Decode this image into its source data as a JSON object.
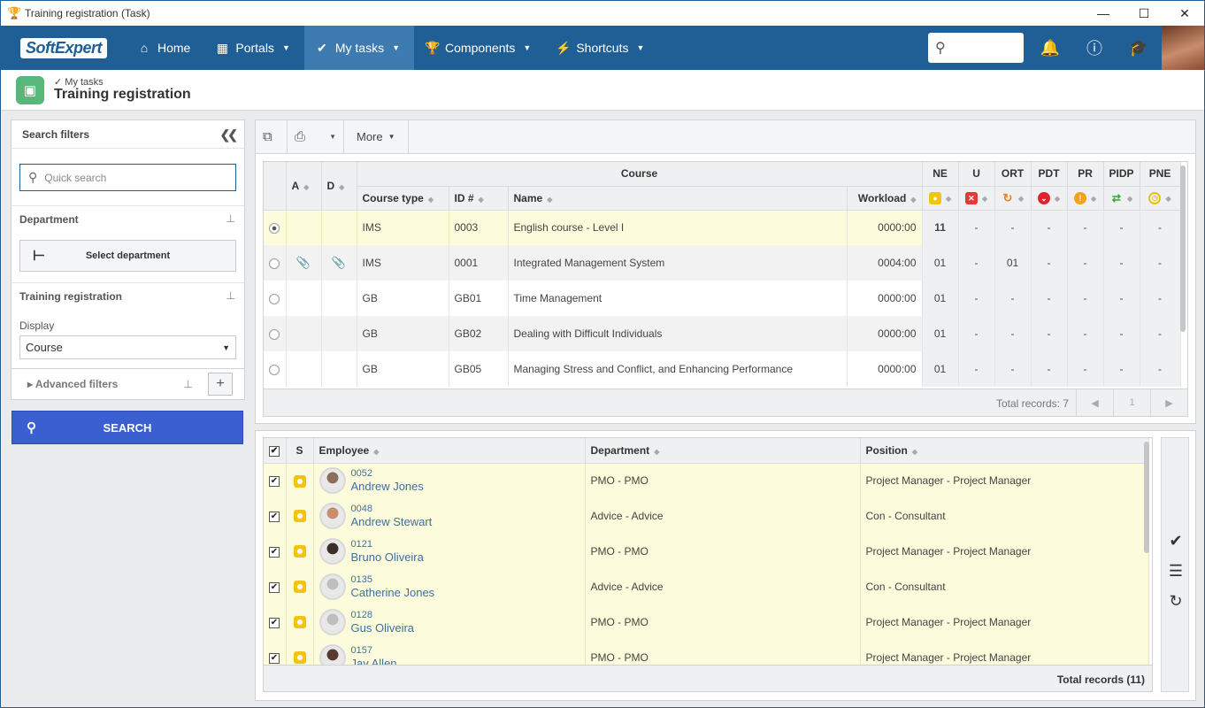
{
  "window": {
    "title": "Training registration (Task)"
  },
  "nav": {
    "logo": "SoftExpert",
    "items": [
      {
        "label": "Home",
        "icon": "home-icon"
      },
      {
        "label": "Portals",
        "icon": "grid-icon"
      },
      {
        "label": "My tasks",
        "icon": "check-icon"
      },
      {
        "label": "Components",
        "icon": "trophy-icon"
      },
      {
        "label": "Shortcuts",
        "icon": "bolt-icon"
      }
    ]
  },
  "breadcrumb": {
    "parent": "My tasks",
    "title": "Training registration"
  },
  "filters": {
    "header": "Search filters",
    "quick_search_placeholder": "Quick search",
    "department_label": "Department",
    "select_department": "Select department",
    "training_label": "Training registration",
    "display_label": "Display",
    "display_value": "Course",
    "advanced_filters": "Advanced filters",
    "search_button": "SEARCH"
  },
  "toolbar": {
    "more": "More"
  },
  "courses": {
    "group_header": "Course",
    "columns": {
      "a": "A",
      "d": "D",
      "type": "Course type",
      "id": "ID #",
      "name": "Name",
      "workload": "Workload"
    },
    "status_columns": [
      "NE",
      "U",
      "ORT",
      "PDT",
      "PR",
      "PIDP",
      "PNE"
    ],
    "rows": [
      {
        "selected": true,
        "attach_a": false,
        "attach_d": false,
        "type": "IMS",
        "id": "0003",
        "name": "English course - Level I",
        "workload": "0000:00",
        "stats": [
          "11",
          "-",
          "-",
          "-",
          "-",
          "-",
          "-"
        ]
      },
      {
        "selected": false,
        "attach_a": true,
        "attach_d": true,
        "type": "IMS",
        "id": "0001",
        "name": "Integrated Management System",
        "workload": "0004:00",
        "stats": [
          "01",
          "-",
          "01",
          "-",
          "-",
          "-",
          "-"
        ]
      },
      {
        "selected": false,
        "attach_a": false,
        "attach_d": false,
        "type": "GB",
        "id": "GB01",
        "name": "Time Management",
        "workload": "0000:00",
        "stats": [
          "01",
          "-",
          "-",
          "-",
          "-",
          "-",
          "-"
        ]
      },
      {
        "selected": false,
        "attach_a": false,
        "attach_d": false,
        "type": "GB",
        "id": "GB02",
        "name": "Dealing with Difficult Individuals",
        "workload": "0000:00",
        "stats": [
          "01",
          "-",
          "-",
          "-",
          "-",
          "-",
          "-"
        ]
      },
      {
        "selected": false,
        "attach_a": false,
        "attach_d": false,
        "type": "GB",
        "id": "GB05",
        "name": "Managing Stress and Conflict, and Enhancing Performance",
        "workload": "0000:00",
        "stats": [
          "01",
          "-",
          "-",
          "-",
          "-",
          "-",
          "-"
        ]
      }
    ],
    "total": "Total records: 7",
    "page": "1"
  },
  "employees": {
    "columns": {
      "s": "S",
      "employee": "Employee",
      "department": "Department",
      "position": "Position"
    },
    "rows": [
      {
        "id": "0052",
        "name": "Andrew Jones",
        "department": "PMO - PMO",
        "position": "Project Manager - Project Manager"
      },
      {
        "id": "0048",
        "name": "Andrew Stewart",
        "department": "Advice - Advice",
        "position": "Con - Consultant"
      },
      {
        "id": "0121",
        "name": "Bruno Oliveira",
        "department": "PMO - PMO",
        "position": "Project Manager - Project Manager"
      },
      {
        "id": "0135",
        "name": "Catherine Jones",
        "department": "Advice - Advice",
        "position": "Con - Consultant"
      },
      {
        "id": "0128",
        "name": "Gus Oliveira",
        "department": "PMO - PMO",
        "position": "Project Manager - Project Manager"
      },
      {
        "id": "0157",
        "name": "Jay Allen",
        "department": "PMO - PMO",
        "position": "Project Manager - Project Manager"
      }
    ],
    "total": "Total records (11)"
  },
  "colors": {
    "brand": "#1f5f95",
    "search_button": "#3b5fd0",
    "selected_row": "#fcfbdc"
  }
}
